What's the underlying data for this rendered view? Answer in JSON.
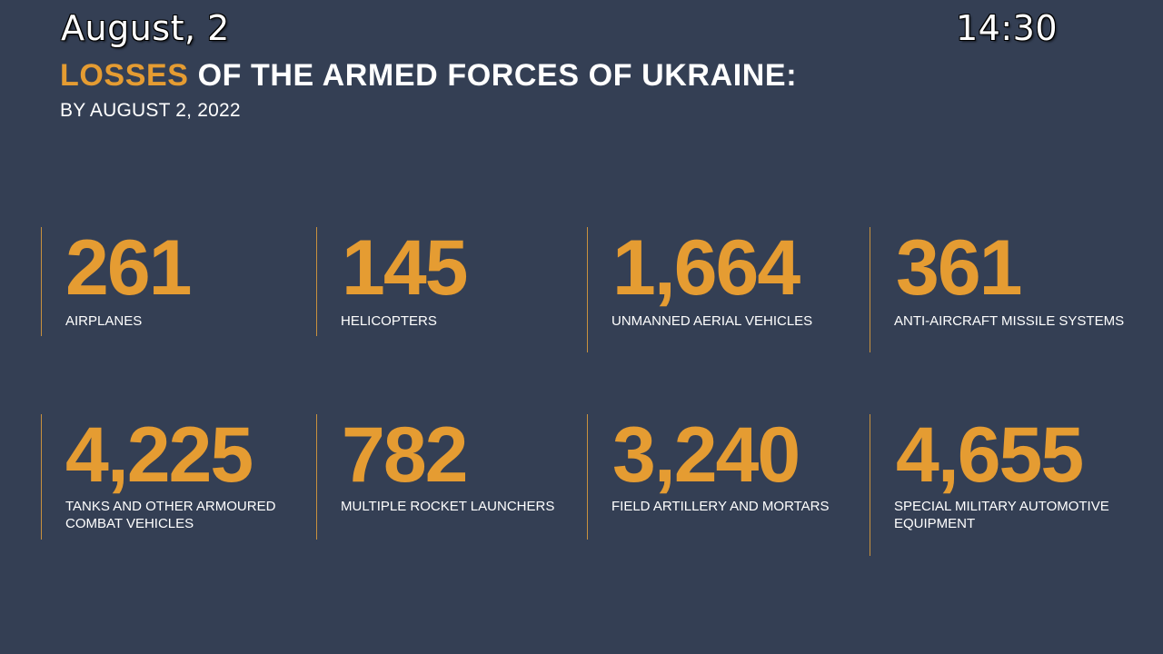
{
  "overlay": {
    "date": "August, 2",
    "time": "14:30"
  },
  "heading": {
    "accent_word": "LOSSES",
    "rest": " OF THE ARMED FORCES OF UKRAINE:",
    "subtitle": "BY AUGUST 2, 2022"
  },
  "stats": [
    {
      "value": "261",
      "label": "AIRPLANES"
    },
    {
      "value": "145",
      "label": "HELICOPTERS"
    },
    {
      "value": "1,664",
      "label": "UNMANNED AERIAL VEHICLES"
    },
    {
      "value": "361",
      "label": "ANTI-AIRCRAFT MISSILE SYSTEMS"
    },
    {
      "value": "4,225",
      "label_line1": "TANKS AND OTHER ARMOURED",
      "label_line2": "COMBAT VEHICLES"
    },
    {
      "value": "782",
      "label": "MULTIPLE ROCKET LAUNCHERS"
    },
    {
      "value": "3,240",
      "label": "FIELD ARTILLERY AND MORTARS"
    },
    {
      "value": "4,655",
      "label_line1": "SPECIAL MILITARY AUTOMOTIVE",
      "label_line2": "EQUIPMENT"
    }
  ],
  "colors": {
    "background": "#343f54",
    "accent": "#e59c32",
    "divider": "#c8913e",
    "text": "#ffffff"
  }
}
